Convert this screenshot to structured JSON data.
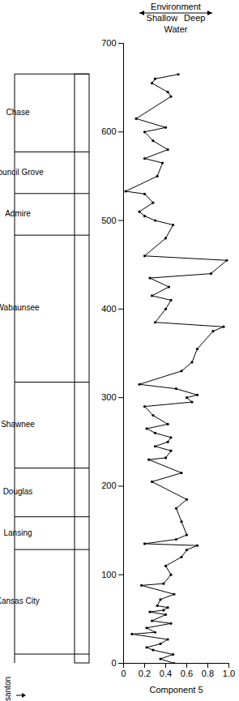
{
  "chart_data": {
    "type": "line",
    "header": [
      "Environment",
      "Shallow",
      "Deep",
      "Water"
    ],
    "x_label": "Component 5",
    "xlim": [
      0,
      1.0
    ],
    "xticks": [
      0,
      0.2,
      0.4,
      0.6,
      0.8,
      {
        "value": 1.0,
        "label": "1.0"
      }
    ],
    "ylim": [
      0,
      700
    ],
    "yticks": [
      0,
      100,
      200,
      300,
      400,
      500,
      600,
      700
    ],
    "marker": "dot",
    "color": "#000000",
    "grid": false,
    "units": [
      {
        "name": "Pleasanton",
        "bottom": 0,
        "top": 10
      },
      {
        "name": "Kansas City",
        "bottom": 10,
        "top": 128
      },
      {
        "name": "Lansing",
        "bottom": 128,
        "top": 165
      },
      {
        "name": "Douglas",
        "bottom": 165,
        "top": 220
      },
      {
        "name": "Shawnee",
        "bottom": 220,
        "top": 317
      },
      {
        "name": "Wabaunsee",
        "bottom": 317,
        "top": 483
      },
      {
        "name": "Admire",
        "bottom": 483,
        "top": 530
      },
      {
        "name": "Council Grove",
        "bottom": 530,
        "top": 577
      },
      {
        "name": "Chase",
        "bottom": 577,
        "top": 665
      }
    ],
    "y": [
      0,
      5,
      10,
      15,
      18,
      22,
      27,
      33,
      35,
      40,
      45,
      48,
      55,
      58,
      60,
      63,
      65,
      72,
      78,
      88,
      90,
      100,
      110,
      120,
      128,
      133,
      135,
      140,
      145,
      160,
      175,
      185,
      205,
      215,
      230,
      232,
      240,
      245,
      250,
      255,
      260,
      265,
      270,
      280,
      290,
      295,
      300,
      303,
      310,
      315,
      330,
      340,
      355,
      375,
      380,
      385,
      400,
      410,
      415,
      425,
      435,
      440,
      455,
      460,
      480,
      495,
      500,
      505,
      510,
      520,
      530,
      533,
      550,
      565,
      570,
      580,
      590,
      600,
      605,
      615,
      640,
      645,
      655,
      660,
      665
    ],
    "values": [
      0.48,
      0.35,
      0.47,
      0.28,
      0.22,
      0.35,
      0.42,
      0.08,
      0.3,
      0.22,
      0.45,
      0.27,
      0.4,
      0.25,
      0.38,
      0.42,
      0.32,
      0.35,
      0.48,
      0.17,
      0.38,
      0.45,
      0.4,
      0.55,
      0.6,
      0.7,
      0.2,
      0.5,
      0.6,
      0.55,
      0.5,
      0.6,
      0.27,
      0.55,
      0.24,
      0.4,
      0.45,
      0.3,
      0.42,
      0.45,
      0.3,
      0.22,
      0.42,
      0.28,
      0.2,
      0.65,
      0.6,
      0.7,
      0.5,
      0.15,
      0.55,
      0.65,
      0.7,
      0.85,
      0.95,
      0.3,
      0.4,
      0.45,
      0.27,
      0.43,
      0.25,
      0.83,
      0.98,
      0.2,
      0.4,
      0.47,
      0.3,
      0.2,
      0.15,
      0.28,
      0.2,
      0.02,
      0.32,
      0.37,
      0.2,
      0.42,
      0.28,
      0.2,
      0.4,
      0.12,
      0.45,
      0.42,
      0.27,
      0.3,
      0.52
    ]
  }
}
